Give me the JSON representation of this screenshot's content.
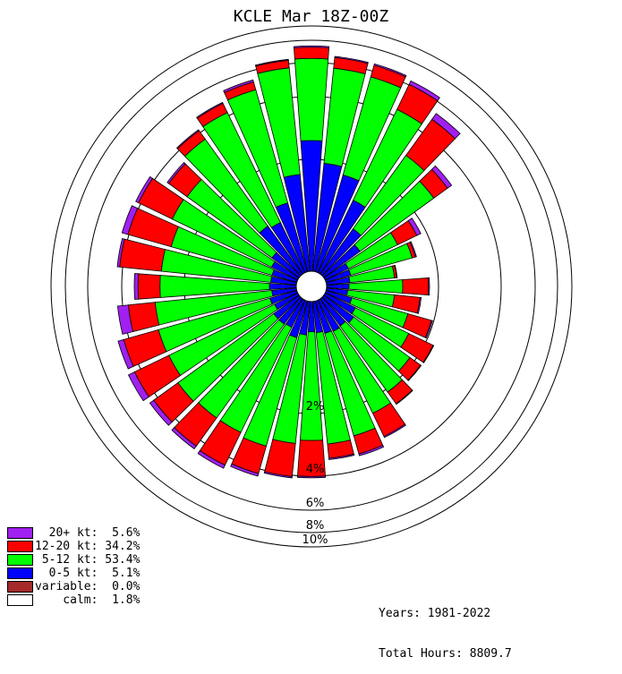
{
  "title": "KCLE Mar 18Z-00Z",
  "footer": {
    "years": "Years: 1981-2022",
    "total_hours": "Total Hours: 8809.7"
  },
  "legend": [
    {
      "label": "  20+ kt:  5.6%",
      "color": "#a020f0"
    },
    {
      "label": "12-20 kt: 34.2%",
      "color": "#ff0000"
    },
    {
      "label": " 5-12 kt: 53.4%",
      "color": "#00ff00"
    },
    {
      "label": "  0-5 kt:  5.1%",
      "color": "#0000ff"
    },
    {
      "label": "variable:  0.0%",
      "color": "#a52a2a"
    },
    {
      "label": "    calm:  1.8%",
      "color": "#ffffff"
    }
  ],
  "chart_data": {
    "type": "polar-stacked-bar",
    "title": "KCLE Mar 18Z-00Z",
    "center_value_calm_percent": 1.8,
    "radial_ticks": [
      2,
      4,
      6,
      8,
      10
    ],
    "radial_tick_labels": [
      "2%",
      "4%",
      "6%",
      "8%",
      "10%"
    ],
    "radial_max": 10,
    "bins_order": [
      "0-5 kt",
      "5-12 kt",
      "12-20 kt",
      "20+ kt"
    ],
    "bin_colors": [
      "#0000ff",
      "#00ff00",
      "#ff0000",
      "#a020f0"
    ],
    "direction_step_deg": 10,
    "sectors": [
      {
        "dir": 0,
        "cumulative": [
          2.6,
          6.38,
          7.38,
          7.5
        ]
      },
      {
        "dir": 10,
        "cumulative": [
          1.94,
          5.74,
          6.56,
          6.66
        ]
      },
      {
        "dir": 20,
        "cumulative": [
          1.8,
          5.65,
          6.55,
          6.67
        ]
      },
      {
        "dir": 30,
        "cumulative": [
          1.44,
          4.4,
          6.06,
          6.4
        ]
      },
      {
        "dir": 40,
        "cumulative": [
          1.0,
          3.1,
          4.96,
          5.38
        ]
      },
      {
        "dir": 50,
        "cumulative": [
          0.8,
          2.76,
          3.3,
          3.46
        ]
      },
      {
        "dir": 60,
        "cumulative": [
          0.46,
          1.44,
          1.82,
          1.9
        ]
      },
      {
        "dir": 70,
        "cumulative": [
          0.46,
          1.6,
          1.66,
          1.68
        ]
      },
      {
        "dir": 80,
        "cumulative": [
          0.42,
          1.22,
          1.26,
          1.27
        ]
      },
      {
        "dir": 90,
        "cumulative": [
          0.4,
          1.36,
          1.82,
          1.84
        ]
      },
      {
        "dir": 100,
        "cumulative": [
          0.38,
          1.22,
          1.68,
          1.7
        ]
      },
      {
        "dir": 110,
        "cumulative": [
          0.48,
          1.52,
          1.96,
          1.98
        ]
      },
      {
        "dir": 120,
        "cumulative": [
          0.6,
          1.66,
          2.26,
          2.28
        ]
      },
      {
        "dir": 130,
        "cumulative": [
          0.66,
          1.9,
          2.24,
          2.26
        ]
      },
      {
        "dir": 140,
        "cumulative": [
          0.6,
          2.1,
          2.56,
          2.58
        ]
      },
      {
        "dir": 150,
        "cumulative": [
          0.62,
          2.44,
          3.26,
          3.3
        ]
      },
      {
        "dir": 160,
        "cumulative": [
          0.6,
          2.9,
          3.5,
          3.56
        ]
      },
      {
        "dir": 170,
        "cumulative": [
          0.56,
          3.0,
          3.46,
          3.5
        ]
      },
      {
        "dir": 180,
        "cumulative": [
          0.54,
          2.86,
          4.02,
          4.1
        ]
      },
      {
        "dir": 190,
        "cumulative": [
          0.6,
          2.98,
          4.08,
          4.16
        ]
      },
      {
        "dir": 200,
        "cumulative": [
          0.68,
          3.24,
          4.28,
          4.44
        ]
      },
      {
        "dir": 210,
        "cumulative": [
          0.54,
          3.12,
          4.52,
          4.72
        ]
      },
      {
        "dir": 220,
        "cumulative": [
          0.56,
          3.12,
          4.42,
          4.62
        ]
      },
      {
        "dir": 230,
        "cumulative": [
          0.56,
          3.2,
          4.28,
          4.56
        ]
      },
      {
        "dir": 240,
        "cumulative": [
          0.46,
          3.0,
          4.4,
          4.8
        ]
      },
      {
        "dir": 250,
        "cumulative": [
          0.5,
          3.02,
          4.32,
          4.66
        ]
      },
      {
        "dir": 260,
        "cumulative": [
          0.44,
          2.96,
          3.82,
          4.3
        ]
      },
      {
        "dir": 270,
        "cumulative": [
          0.48,
          2.78,
          3.48,
          3.6
        ]
      },
      {
        "dir": 280,
        "cumulative": [
          0.46,
          2.76,
          4.18,
          4.32
        ]
      },
      {
        "dir": 290,
        "cumulative": [
          0.46,
          2.6,
          4.06,
          4.42
        ]
      },
      {
        "dir": 300,
        "cumulative": [
          0.52,
          2.88,
          4.14,
          4.32
        ]
      },
      {
        "dir": 310,
        "cumulative": [
          0.6,
          2.84,
          3.56,
          3.62
        ]
      },
      {
        "dir": 320,
        "cumulative": [
          1.06,
          3.74,
          4.14,
          4.2
        ]
      },
      {
        "dir": 330,
        "cumulative": [
          1.0,
          4.2,
          4.8,
          4.86
        ]
      },
      {
        "dir": 340,
        "cumulative": [
          1.28,
          4.86,
          5.34,
          5.46
        ]
      },
      {
        "dir": 350,
        "cumulative": [
          1.74,
          5.76,
          6.32,
          6.4
        ]
      }
    ]
  }
}
